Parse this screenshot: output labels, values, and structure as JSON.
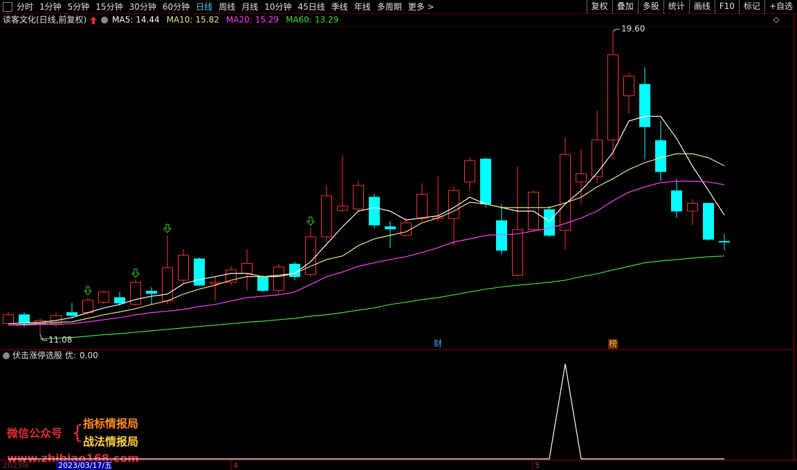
{
  "toolbar": {
    "periods": [
      "分时",
      "1分钟",
      "5分钟",
      "15分钟",
      "30分钟",
      "60分钟",
      "日线",
      "周线",
      "月线",
      "10分钟",
      "45日线",
      "季线",
      "年线",
      "多周期",
      "更多 >"
    ],
    "active_index": 6,
    "tools": [
      "复权",
      "叠加",
      "多股",
      "统计",
      "画线",
      "F10",
      "标记",
      "+自选"
    ]
  },
  "chart_data": [
    {
      "type": "candlestick",
      "title": "读客文化(日线,前复权)",
      "up_color": "#ff3232",
      "down_color": "#00ffff",
      "ylim": [
        10.76,
        19.7
      ],
      "open": [
        11.39,
        11.64,
        11.39,
        11.39,
        11.7,
        11.7,
        11.99,
        12.12,
        11.93,
        12.3,
        12.03,
        12.61,
        13.21,
        12.51,
        12.55,
        12.8,
        12.69,
        12.32,
        13.06,
        12.77,
        13.83,
        14.57,
        14.61,
        14.94,
        14.11,
        13.87,
        14.34,
        14.34,
        14.34,
        15.37,
        16.01,
        14.28,
        12.75,
        14.03,
        14.59,
        14.01,
        15.37,
        15.52,
        16.55,
        17.79,
        18.11,
        16.53,
        15.12,
        14.55,
        14.77,
        13.7
      ],
      "high": [
        11.7,
        11.7,
        11.54,
        11.7,
        11.97,
        12.12,
        12.32,
        12.28,
        12.61,
        12.42,
        13.87,
        13.48,
        13.25,
        12.71,
        13.0,
        13.48,
        12.75,
        13.06,
        13.13,
        14.07,
        15.27,
        16.11,
        15.39,
        15.04,
        14.26,
        14.36,
        15.33,
        15.52,
        15.23,
        16.05,
        16.05,
        14.75,
        15.81,
        15.13,
        14.69,
        16.63,
        16.3,
        17.37,
        19.6,
        18.43,
        18.59,
        17.08,
        15.46,
        14.88,
        14.77,
        13.91
      ],
      "low": [
        11.35,
        11.31,
        11.08,
        11.31,
        11.54,
        11.62,
        11.93,
        11.89,
        11.89,
        11.93,
        11.93,
        12.51,
        12.44,
        12.03,
        12.47,
        12.32,
        12.28,
        12.22,
        12.61,
        12.71,
        13.68,
        14.53,
        14.55,
        14.07,
        13.52,
        13.83,
        14.26,
        14.26,
        13.58,
        15.13,
        14.65,
        13.33,
        12.71,
        13.97,
        13.83,
        13.48,
        14.75,
        15.33,
        16.01,
        17.27,
        16.01,
        15.39,
        14.36,
        14.16,
        13.72,
        13.45
      ],
      "close": [
        11.64,
        11.41,
        11.48,
        11.62,
        11.62,
        12.05,
        12.28,
        11.97,
        12.55,
        12.24,
        12.96,
        13.31,
        12.47,
        12.55,
        12.9,
        13.08,
        12.32,
        12.98,
        12.71,
        13.83,
        14.98,
        14.69,
        15.27,
        14.16,
        14.05,
        14.22,
        15.02,
        14.4,
        15.13,
        15.97,
        14.75,
        13.45,
        14.03,
        15.08,
        13.87,
        16.14,
        15.6,
        16.55,
        18.94,
        18.34,
        16.92,
        15.66,
        14.55,
        14.77,
        13.76,
        13.68
      ],
      "series": [
        {
          "name": "MA5:",
          "color": "#ffffff",
          "values": [
            11.39,
            11.41,
            11.43,
            11.48,
            11.56,
            11.7,
            11.83,
            11.93,
            12.07,
            12.16,
            12.22,
            12.51,
            12.63,
            12.71,
            12.8,
            12.8,
            12.71,
            12.75,
            12.8,
            13.13,
            13.62,
            14.11,
            14.55,
            14.65,
            14.55,
            14.3,
            14.36,
            14.42,
            14.65,
            14.94,
            14.75,
            14.65,
            14.55,
            14.55,
            14.26,
            14.75,
            15.13,
            15.62,
            16.2,
            17.08,
            17.21,
            17.21,
            16.59,
            15.81,
            15.13,
            14.44
          ]
        },
        {
          "name": "MA10:",
          "color": "#f0e68c",
          "values": [
            11.35,
            11.37,
            11.39,
            11.43,
            11.44,
            11.54,
            11.64,
            11.72,
            11.81,
            11.93,
            12.03,
            12.22,
            12.36,
            12.47,
            12.61,
            12.71,
            12.71,
            12.71,
            12.8,
            13.0,
            13.19,
            13.29,
            13.58,
            13.77,
            13.87,
            13.97,
            14.22,
            14.36,
            14.55,
            14.8,
            14.75,
            14.65,
            14.65,
            14.65,
            14.65,
            14.78,
            14.94,
            15.23,
            15.46,
            15.72,
            15.91,
            16.05,
            16.16,
            16.16,
            16.05,
            15.82
          ]
        },
        {
          "name": "MA20:",
          "color": "#ff40ff",
          "values": [
            11.35,
            11.35,
            11.37,
            11.37,
            11.39,
            11.44,
            11.5,
            11.56,
            11.64,
            11.7,
            11.74,
            11.79,
            11.87,
            11.93,
            12.03,
            12.12,
            12.16,
            12.2,
            12.28,
            12.49,
            12.71,
            12.84,
            13.0,
            13.1,
            13.19,
            13.27,
            13.39,
            13.52,
            13.68,
            13.77,
            13.87,
            13.89,
            13.91,
            13.99,
            14.07,
            14.2,
            14.36,
            14.55,
            14.84,
            15.08,
            15.23,
            15.35,
            15.39,
            15.39,
            15.37,
            15.29
          ]
        },
        {
          "name": "MA60:",
          "color": "#40e040",
          "values": [
            null,
            null,
            10.96,
            10.98,
            11.0,
            11.04,
            11.08,
            11.11,
            11.15,
            11.19,
            11.23,
            11.27,
            11.31,
            11.35,
            11.39,
            11.43,
            11.46,
            11.5,
            11.54,
            11.6,
            11.64,
            11.7,
            11.77,
            11.83,
            11.93,
            11.99,
            12.07,
            12.12,
            12.2,
            12.28,
            12.36,
            12.42,
            12.47,
            12.51,
            12.55,
            12.61,
            12.71,
            12.79,
            12.9,
            13.0,
            13.1,
            13.15,
            13.19,
            13.23,
            13.27,
            13.29
          ]
        }
      ],
      "annotations": [
        {
          "index": 38,
          "value": 19.6,
          "label": "19.60"
        },
        {
          "index": 2,
          "value": 11.08,
          "label": "11.08"
        }
      ],
      "events": [
        {
          "index": 27,
          "label": "财"
        },
        {
          "index": 38,
          "label": "榜"
        }
      ],
      "signals": [
        5,
        8,
        10,
        19
      ]
    },
    {
      "type": "line",
      "title": "伏击涨停选股",
      "ylim": [
        0,
        1.1
      ],
      "series": [
        {
          "name": "优:",
          "color": "#ffffff",
          "value_label": "0.00",
          "values": [
            0,
            0,
            0,
            0,
            0,
            0,
            0,
            0,
            0,
            0,
            0,
            0,
            0,
            0,
            0,
            0,
            0,
            0,
            0,
            0,
            0,
            0,
            0,
            0,
            0,
            0,
            0,
            0,
            0,
            0,
            0,
            0,
            0,
            0,
            0,
            1,
            0,
            0,
            0,
            0,
            0,
            0,
            0,
            0,
            0,
            0
          ]
        }
      ]
    }
  ],
  "watermark": {
    "account": "微信公众号",
    "names": [
      "指标情报局",
      "战法情报局"
    ],
    "url": "www.zhibiao168.com"
  },
  "footer": {
    "year": "2023年",
    "cursor": "2023/03/17/五",
    "months": [
      "4",
      "5"
    ]
  }
}
